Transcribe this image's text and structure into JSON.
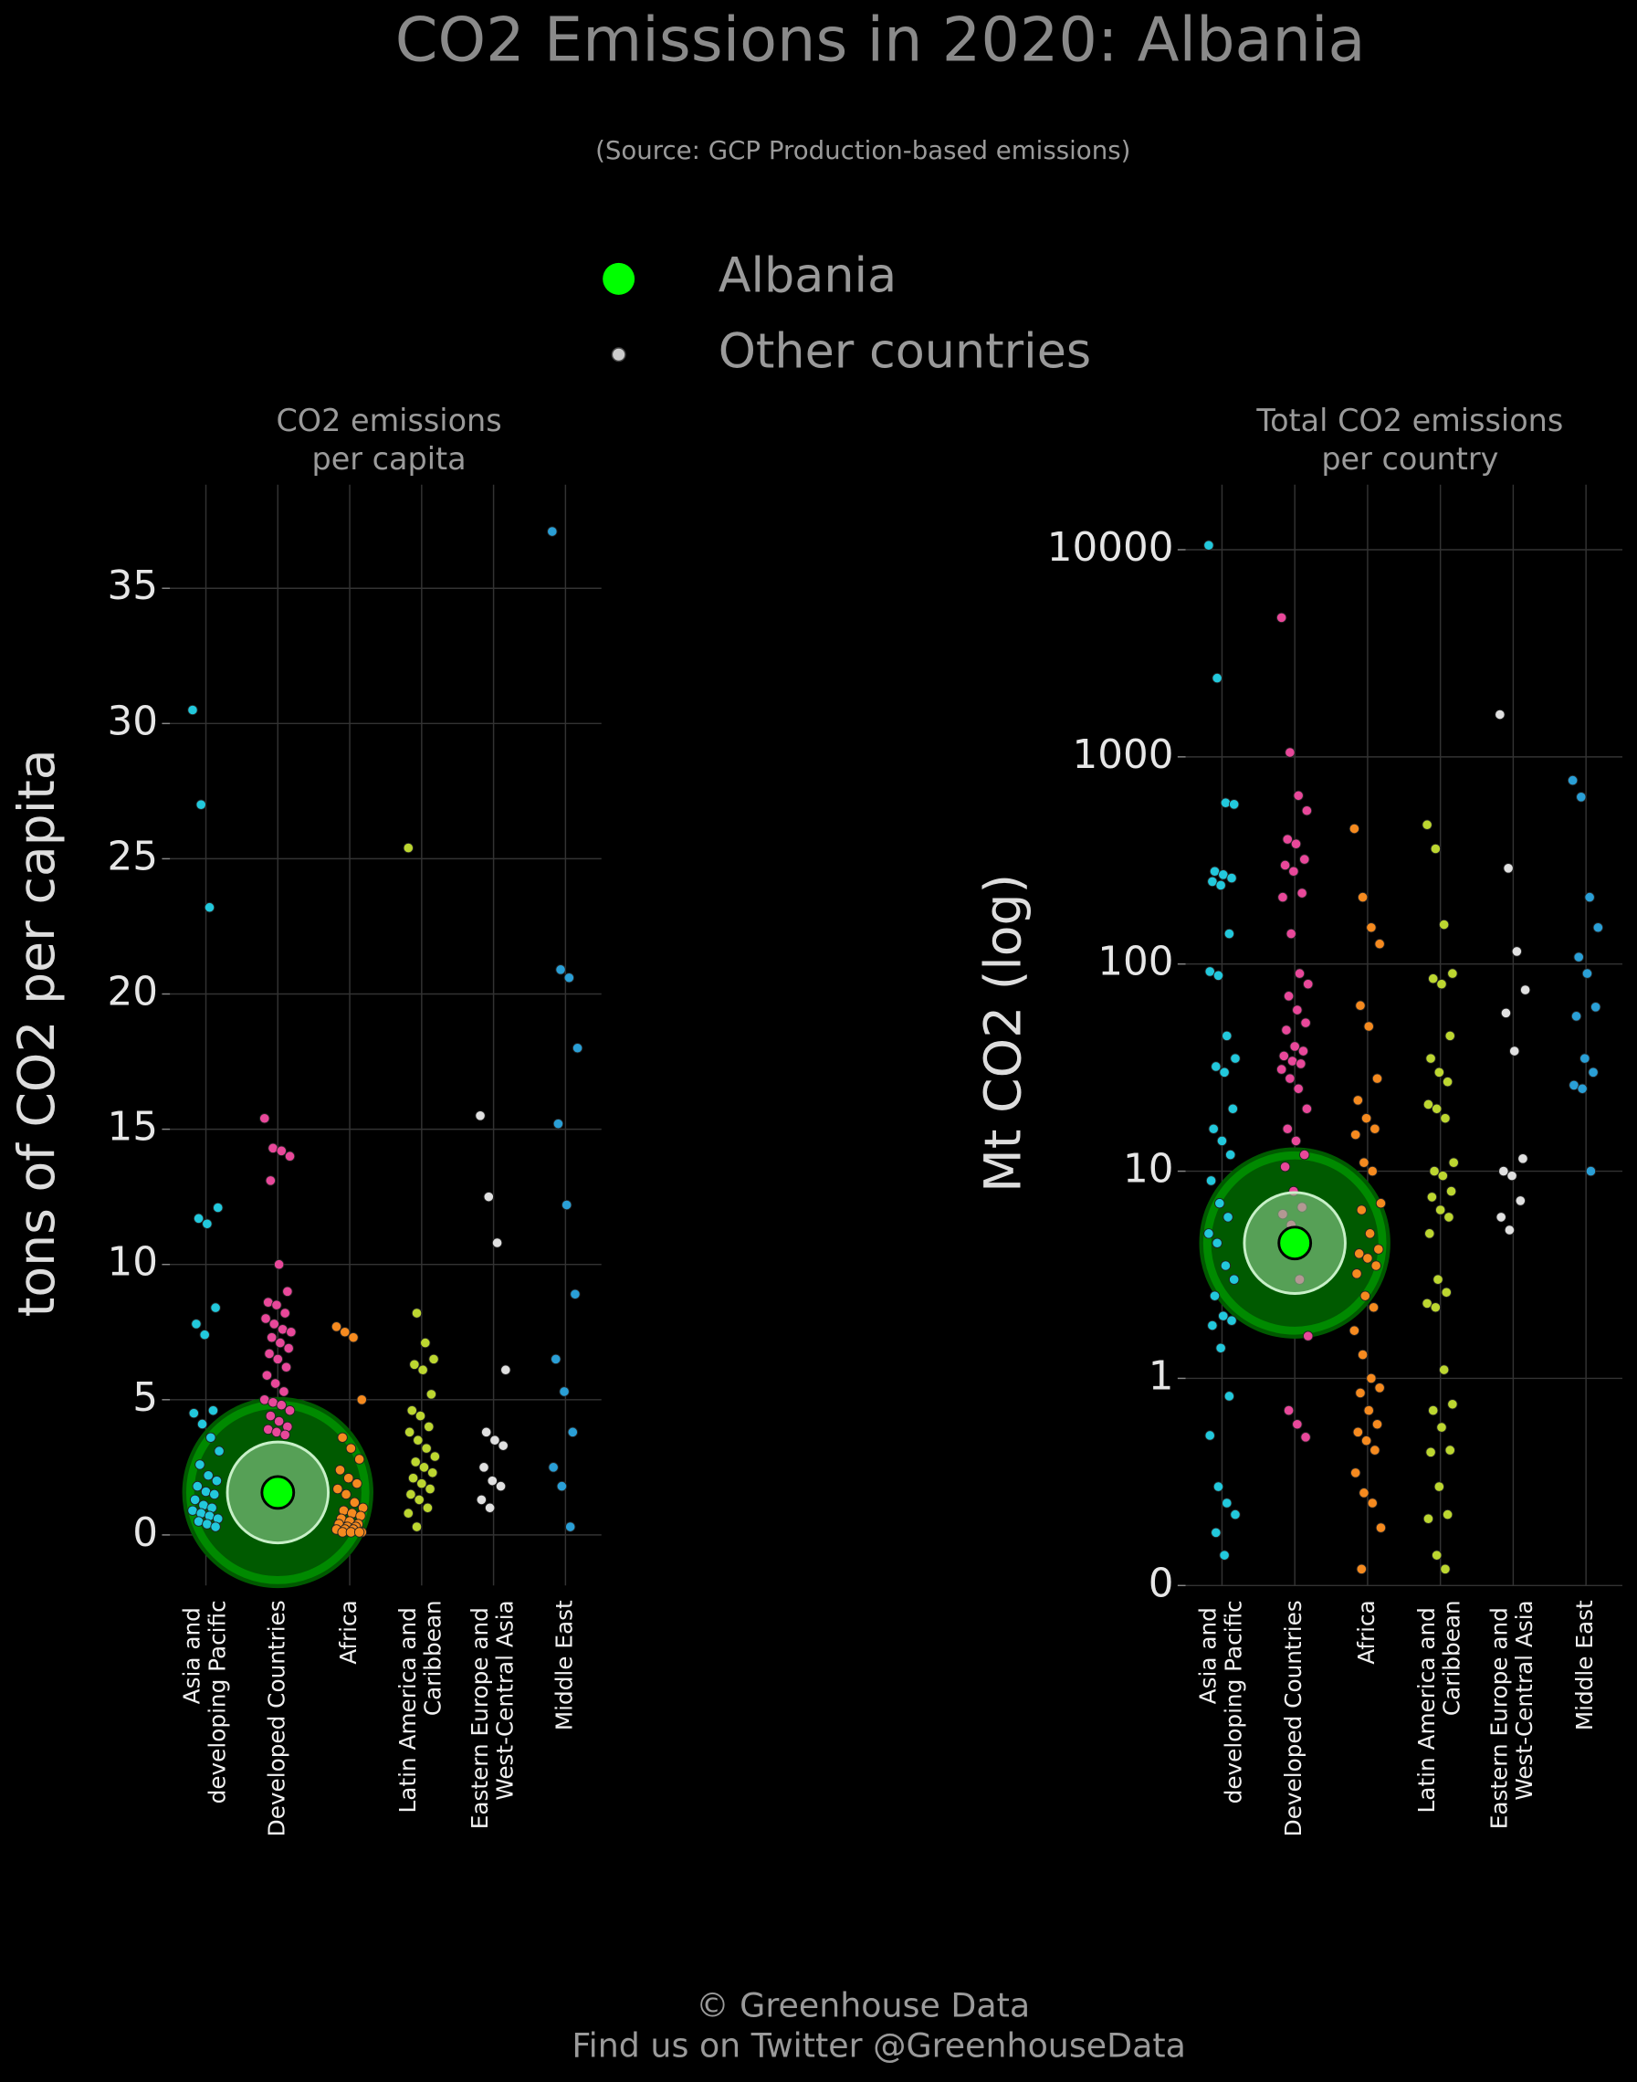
{
  "title": "CO2 Emissions in 2020: Albania",
  "subtitle": "(Source: GCP Production-based emissions)",
  "legend": [
    {
      "name": "Albania",
      "color": "#00ff00"
    },
    {
      "name": "Other countries",
      "color": "#cccccc"
    }
  ],
  "footer": [
    "© Greenhouse Data",
    "Find us on Twitter @GreenhouseData"
  ],
  "chart_data": [
    {
      "type": "strip",
      "title": [
        "CO2 emissions",
        "per capita"
      ],
      "ylabel": "tons of CO2 per capita",
      "categories": [
        "Asia and developing Pacific",
        "Developed Countries",
        "Africa",
        "Latin America and Caribbean",
        "Eastern Europe and West-Central Asia",
        "Middle East"
      ],
      "colors": [
        "#22c8dc",
        "#e8489a",
        "#f58a1f",
        "#bcd630",
        "#e0e0e0",
        "#2a9fd6"
      ],
      "values": [
        [
          30.5,
          27,
          23.2,
          12.1,
          11.7,
          11.5,
          8.4,
          7.8,
          7.4,
          4.6,
          4.5,
          4.1,
          3.6,
          3.1,
          2.6,
          2.2,
          2.0,
          1.8,
          1.6,
          1.5,
          1.3,
          1.1,
          1.0,
          0.9,
          0.8,
          0.7,
          0.6,
          0.5,
          0.4,
          0.3
        ],
        [
          15.4,
          14.3,
          14.2,
          14.0,
          13.1,
          10.0,
          9.0,
          8.6,
          8.5,
          8.2,
          8.0,
          7.8,
          7.6,
          7.5,
          7.3,
          7.1,
          6.9,
          6.7,
          6.5,
          6.2,
          5.9,
          5.6,
          5.3,
          5.0,
          4.9,
          4.8,
          4.6,
          4.4,
          4.2,
          4.0,
          3.9,
          3.8,
          3.7
        ],
        [
          7.7,
          7.5,
          7.3,
          5.0,
          3.6,
          3.2,
          2.8,
          2.4,
          2.1,
          1.9,
          1.7,
          1.5,
          1.2,
          1.0,
          0.9,
          0.8,
          0.7,
          0.6,
          0.5,
          0.4,
          0.4,
          0.3,
          0.3,
          0.2,
          0.2,
          0.2,
          0.1,
          0.1,
          0.1,
          0.1
        ],
        [
          25.4,
          8.2,
          7.1,
          6.5,
          6.3,
          6.1,
          5.2,
          4.6,
          4.4,
          4.0,
          3.8,
          3.5,
          3.2,
          2.9,
          2.7,
          2.5,
          2.3,
          2.1,
          1.9,
          1.7,
          1.5,
          1.3,
          1.0,
          0.8,
          0.3
        ],
        [
          15.5,
          12.5,
          10.8,
          6.1,
          3.8,
          3.5,
          3.3,
          2.5,
          2.0,
          1.8,
          1.3,
          1.0
        ],
        [
          37.1,
          20.9,
          20.6,
          18.0,
          15.2,
          12.2,
          8.9,
          6.5,
          5.3,
          3.8,
          2.5,
          1.8,
          0.3
        ]
      ],
      "highlight": {
        "category": "Developed Countries",
        "value": 1.57
      },
      "ylim": [
        -1.87,
        38.83
      ],
      "yticks": [
        0,
        5,
        10,
        15,
        20,
        25,
        30,
        35
      ],
      "log": false,
      "grid": true
    },
    {
      "type": "strip",
      "title": [
        "Total CO2 emissions",
        "per country"
      ],
      "ylabel": "Mt CO2 (log)",
      "categories": [
        "Asia and developing Pacific",
        "Developed Countries",
        "Africa",
        "Latin America and Caribbean",
        "Eastern Europe and West-Central Asia",
        "Middle East"
      ],
      "colors": [
        "#22c8dc",
        "#e8489a",
        "#f58a1f",
        "#bcd630",
        "#e0e0e0",
        "#2a9fd6"
      ],
      "values": [
        [
          10500,
          2400,
          600,
          590,
          280,
          270,
          260,
          250,
          240,
          140,
          92,
          88,
          45,
          35,
          32,
          30,
          20,
          16,
          14,
          12,
          9,
          7,
          6,
          5,
          4.5,
          3.5,
          3,
          2.5,
          2,
          1.9,
          1.8,
          1.4,
          0.82,
          0.53,
          0.3,
          0.25,
          0.22,
          0.18,
          0.14
        ],
        [
          4700,
          1050,
          650,
          550,
          400,
          380,
          320,
          300,
          280,
          220,
          210,
          140,
          90,
          80,
          70,
          60,
          52,
          48,
          40,
          38,
          36,
          34,
          33,
          31,
          28,
          25,
          20,
          16,
          14,
          12,
          10.5,
          8,
          6.7,
          6.2,
          5.5,
          3,
          1.6,
          0.7,
          0.6,
          0.52
        ],
        [
          450,
          210,
          150,
          125,
          63,
          50,
          28,
          22,
          18,
          16,
          15,
          11,
          10,
          7,
          6.5,
          5,
          4.2,
          4,
          3.8,
          3.5,
          3.2,
          2.5,
          2.2,
          1.7,
          1.3,
          1.0,
          0.9,
          0.85,
          0.7,
          0.6,
          0.55,
          0.5,
          0.45,
          0.35,
          0.28,
          0.25,
          0.19,
          0.12
        ],
        [
          470,
          360,
          155,
          90,
          85,
          80,
          45,
          35,
          30,
          27,
          21,
          20,
          18,
          11,
          10,
          9.5,
          8,
          7.5,
          6.5,
          6,
          5,
          3,
          2.6,
          2.3,
          2.2,
          1.1,
          0.75,
          0.7,
          0.58,
          0.45,
          0.44,
          0.3,
          0.22,
          0.21,
          0.14,
          0.12
        ],
        [
          1600,
          290,
          115,
          75,
          58,
          38,
          11.5,
          10,
          9.5,
          7.2,
          6,
          5.2
        ],
        [
          770,
          640,
          210,
          150,
          108,
          90,
          62,
          56,
          35,
          30,
          26,
          25,
          10
        ]
      ],
      "highlight": {
        "category": "Developed Countries",
        "value": 4.5
      },
      "ylim": [
        0.1,
        20600
      ],
      "yticks": [
        {
          "value": 0.1,
          "label": "0"
        },
        1,
        10,
        100,
        1000,
        10000
      ],
      "log": true,
      "grid": true
    }
  ]
}
